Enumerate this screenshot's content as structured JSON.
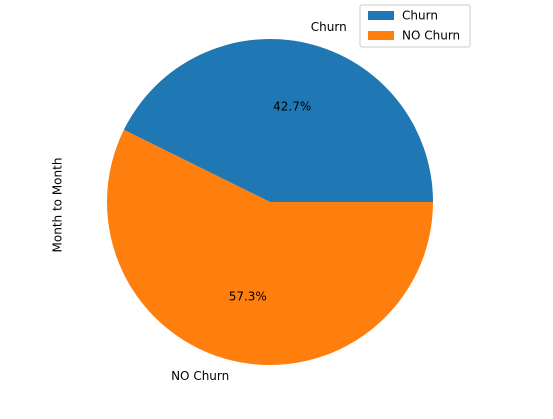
{
  "chart_data": {
    "type": "pie",
    "ylabel": "Month to Month",
    "slices": [
      {
        "label": "Churn",
        "value": 42.7,
        "pct_label": "42.7%",
        "color": "#1f77b4"
      },
      {
        "label": "NO Churn",
        "value": 57.3,
        "pct_label": "57.3%",
        "color": "#ff7f0e"
      }
    ],
    "start_angle_deg": 0,
    "direction": "counterclockwise",
    "legend": {
      "position": "top-right",
      "entries": [
        "Churn",
        "NO Churn"
      ]
    }
  }
}
